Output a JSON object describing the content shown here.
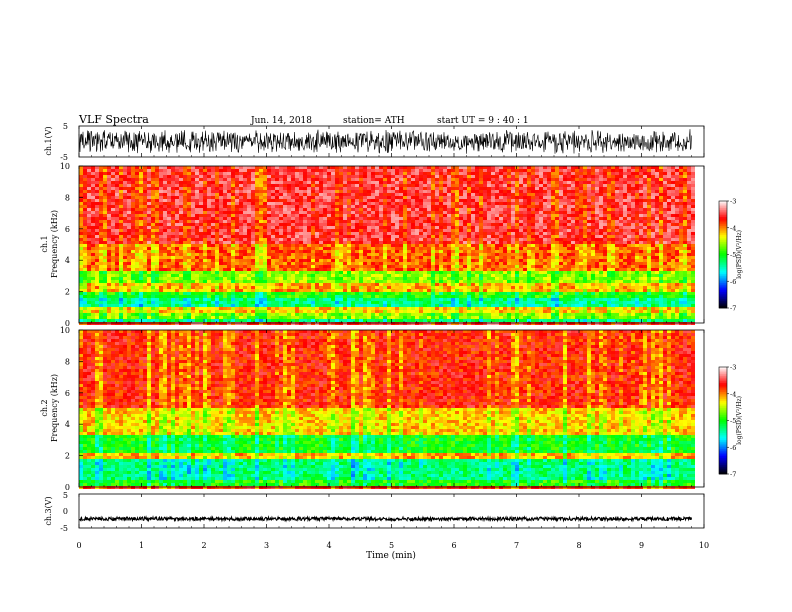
{
  "header": {
    "title": "VLF  Spectra",
    "date": "Jun. 14, 2018",
    "station": "station= ATH",
    "start_ut": "start  UT  =   9  : 40 : 1"
  },
  "chart_data": [
    {
      "type": "line",
      "panel": "ch1-waveform",
      "ylabel": "ch.1(V)",
      "yticks": [
        "5",
        "-5"
      ],
      "ylim": [
        -5,
        5
      ],
      "xlim": [
        0,
        10
      ],
      "signal_end_min": 9.8,
      "trace_color": "#000000"
    },
    {
      "type": "heatmap",
      "panel": "ch1-spectrogram",
      "ylabel_line1": "ch.1",
      "ylabel_line2": "Frequency  (kHz)",
      "yticks": [
        "0",
        "2",
        "4",
        "6",
        "8",
        "10"
      ],
      "ylim": [
        0,
        10
      ],
      "xlim": [
        0,
        10
      ],
      "bands": [
        {
          "from": 0.0,
          "to": 0.3,
          "level": -5.2
        },
        {
          "from": 0.3,
          "to": 0.7,
          "level": -4.6
        },
        {
          "from": 0.7,
          "to": 1.0,
          "level": -4.2
        },
        {
          "from": 1.0,
          "to": 1.6,
          "level": -5.3
        },
        {
          "from": 1.6,
          "to": 2.0,
          "level": -4.9
        },
        {
          "from": 2.0,
          "to": 2.6,
          "level": -4.1
        },
        {
          "from": 2.6,
          "to": 3.3,
          "level": -4.6
        },
        {
          "from": 3.3,
          "to": 5.0,
          "level": -3.9
        },
        {
          "from": 5.0,
          "to": 10.0,
          "level": -3.5
        }
      ],
      "colorbar": {
        "label": "log(PSD)(V²/Hz)",
        "min": -7,
        "max": -3,
        "ticks": [
          "-3",
          "-4",
          "-5",
          "-6",
          "-7"
        ]
      }
    },
    {
      "type": "heatmap",
      "panel": "ch2-spectrogram",
      "ylabel_line1": "ch.2",
      "ylabel_line2": "Frequency  (kHz)",
      "yticks": [
        "0",
        "2",
        "4",
        "6",
        "8",
        "10"
      ],
      "ylim": [
        0,
        10
      ],
      "xlim": [
        0,
        10
      ],
      "bands": [
        {
          "from": 0.0,
          "to": 0.4,
          "level": -4.9
        },
        {
          "from": 0.4,
          "to": 1.7,
          "level": -5.3
        },
        {
          "from": 1.7,
          "to": 2.2,
          "level": -4.1
        },
        {
          "from": 2.2,
          "to": 3.4,
          "level": -5.0
        },
        {
          "from": 3.4,
          "to": 5.0,
          "level": -4.2
        },
        {
          "from": 5.0,
          "to": 10.0,
          "level": -3.7
        }
      ],
      "colorbar": {
        "label": "log(PSD)(V²/Hz)",
        "min": -7,
        "max": -3,
        "ticks": [
          "-3",
          "-4",
          "-5",
          "-6",
          "-7"
        ]
      }
    },
    {
      "type": "line",
      "panel": "ch3-waveform",
      "ylabel": "ch.3(V)",
      "yticks": [
        "5",
        "0",
        "-5"
      ],
      "ylim": [
        -5,
        5
      ],
      "xlim": [
        0,
        10
      ],
      "offset_v": -2.3,
      "signal_end_min": 9.8,
      "trace_color": "#000000"
    }
  ],
  "xaxis": {
    "label": "Time  (min)",
    "ticks": [
      "0",
      "1",
      "2",
      "3",
      "4",
      "5",
      "6",
      "7",
      "8",
      "9",
      "10"
    ],
    "xlim": [
      0,
      10
    ]
  },
  "colormap": [
    "#000000",
    "#0000ff",
    "#00ffff",
    "#00ff00",
    "#ffff00",
    "#ff0000",
    "#ffffff"
  ]
}
